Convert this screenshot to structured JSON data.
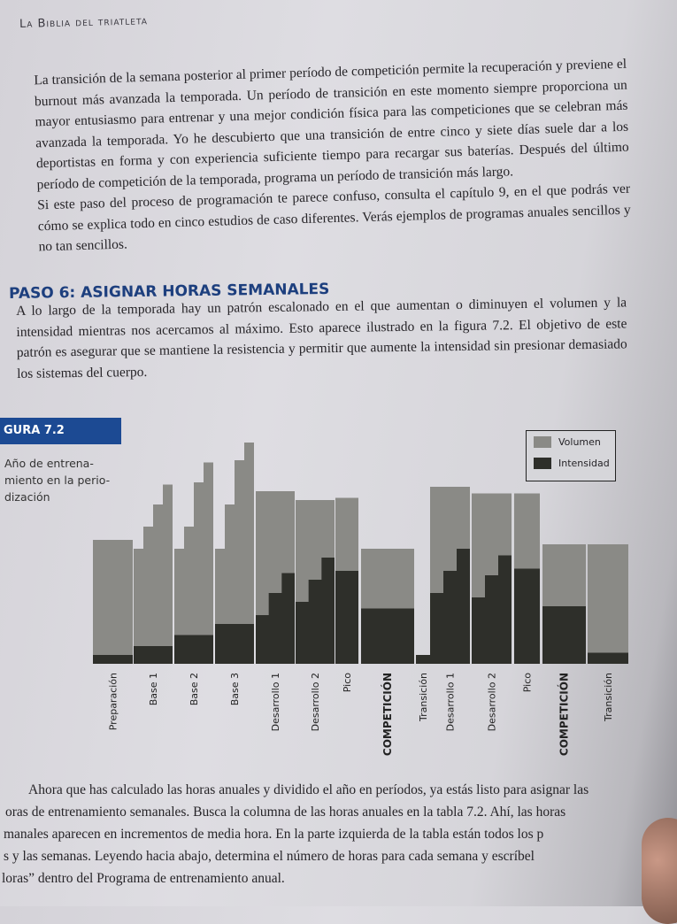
{
  "header": {
    "running_title": "La Biblia del triatleta"
  },
  "paragraphs_top": [
    "La transición de la semana posterior al primer período de competición permite la recuperación y previene el burnout más avanzada la temporada. Un período de transición en este momento siempre proporciona un mayor entusiasmo para entrenar y una mejor condición física para las competiciones que se celebran más avanzada la temporada. Yo he descubierto que una transición de entre cinco y siete días suele dar a los deportistas en forma y con experiencia suficiente tiempo para recargar sus baterías. Después del último período de competición de la temporada, programa un período de transición más largo.",
    "Si este paso del proceso de programación te parece confuso, consulta el capítulo 9, en el que podrás ver cómo se explica todo en cinco estudios de caso diferentes. Verás ejemplos de programas anuales sencillos y no tan sencillos."
  ],
  "section": {
    "heading": "PASO 6: ASIGNAR HORAS SEMANALES",
    "text": "A lo largo de la temporada hay un patrón escalonado en el que aumentan o diminuyen el volumen y la intensidad mientras nos acercamos al máximo. Esto aparece ilustrado en la figura 7.2. El objetivo de este patrón es asegurar que se mantiene la resistencia y permitir que aumente la intensidad sin presionar demasiado los sistemas del cuerpo."
  },
  "figure": {
    "label": "GURA 7.2",
    "caption": "Año de entrenamiento en la periodización",
    "caption_lines": [
      "Año de entrena-",
      "miento en la perio-",
      "dización"
    ],
    "colors": {
      "volume": "#8a8a86",
      "intensity": "#2e2f2a",
      "label_bar": "#1c4a93"
    }
  },
  "chart_data": {
    "type": "bar",
    "title": "",
    "legend": {
      "placement": "top-right",
      "entries": [
        "Volumen",
        "Intensidad"
      ]
    },
    "categories": [
      "Preparación",
      "Base 1",
      "Base 2",
      "Base 3",
      "Desarrollo 1",
      "Desarrollo 2",
      "Pico",
      "COMPETICIÓN",
      "Transición",
      "Desarrollo 1",
      "Desarrollo 2",
      "Pico",
      "COMPETICIÓN",
      "Transición"
    ],
    "bold_categories": [
      7,
      12
    ],
    "series": [
      {
        "name": "Volumen",
        "steps": [
          [
            56
          ],
          [
            52,
            62,
            72,
            81
          ],
          [
            52,
            62,
            82,
            91
          ],
          [
            52,
            72,
            92,
            100
          ],
          [
            78
          ],
          [
            74
          ],
          [
            75
          ],
          [
            52
          ],
          [
            0
          ],
          [
            80
          ],
          [
            77
          ],
          [
            77
          ],
          [
            54
          ],
          [
            54
          ]
        ]
      },
      {
        "name": "Intensidad",
        "steps": [
          [
            4
          ],
          [
            8
          ],
          [
            13
          ],
          [
            18
          ],
          [
            22,
            32,
            41
          ],
          [
            28,
            38,
            48
          ],
          [
            42
          ],
          [
            25
          ],
          [
            4
          ],
          [
            32,
            42,
            52
          ],
          [
            30,
            40,
            49
          ],
          [
            43
          ],
          [
            26
          ],
          [
            5
          ]
        ]
      }
    ],
    "axes": "none"
  },
  "paragraph_bottom": [
    "Ahora que has calculado las horas anuales y dividido el año en períodos, ya estás listo para asignar las",
    "oras de entrenamiento semanales. Busca la columna de las horas anuales en la tabla 7.2. Ahí, las horas",
    "manales aparecen en incrementos de media hora. En la parte izquierda de la tabla están todos los p",
    "s y las semanas. Leyendo hacia abajo, determina el número de horas para cada semana y escríbel",
    "loras” dentro del Programa de entrenamiento anual."
  ]
}
